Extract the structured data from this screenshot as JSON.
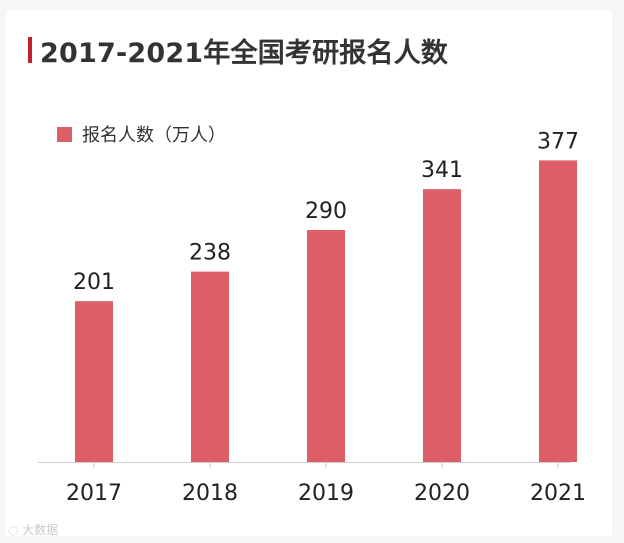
{
  "title": "2017-2021年全国考研报名人数",
  "watermark": "大数据",
  "colors": {
    "bar": "#dc5e67",
    "accent": "#c8202a",
    "axis": "#cfcfcf",
    "text": "#222222"
  },
  "chart_data": {
    "type": "bar",
    "title": "2017-2021年全国考研报名人数",
    "categories": [
      "2017",
      "2018",
      "2019",
      "2020",
      "2021"
    ],
    "series": [
      {
        "name": "报名人数（万人）",
        "values": [
          201,
          238,
          290,
          341,
          377
        ]
      }
    ],
    "data_labels": [
      "201",
      "238",
      "290",
      "341",
      "377"
    ],
    "ylim": [
      0,
      405
    ],
    "legend": "top-left",
    "grid": false
  }
}
